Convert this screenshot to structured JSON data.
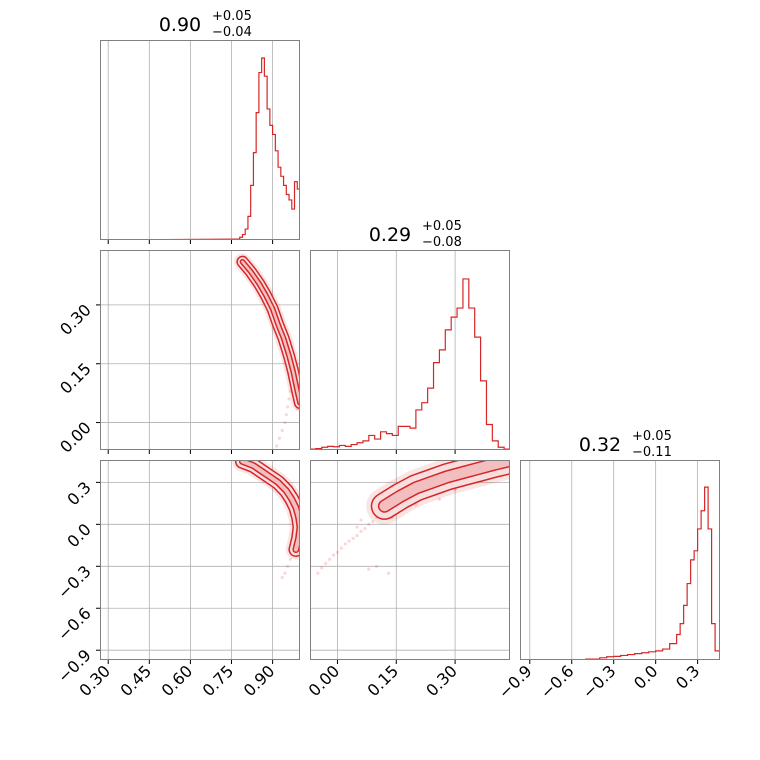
{
  "chart_data": {
    "type": "corner",
    "color": "#d62728",
    "grid": true,
    "parameters": [
      {
        "range": [
          0.27,
          1.0
        ],
        "ticks": [
          0.3,
          0.45,
          0.6,
          0.75,
          0.9
        ],
        "tick_labels": [
          "0.30",
          "0.45",
          "0.60",
          "0.75",
          "0.90"
        ],
        "title": {
          "value": "0.90",
          "plus": "+0.05",
          "minus": "−0.04"
        },
        "histogram": {
          "bins": [
            0.77,
            0.78,
            0.79,
            0.8,
            0.81,
            0.82,
            0.83,
            0.84,
            0.85,
            0.86,
            0.87,
            0.88,
            0.89,
            0.9,
            0.91,
            0.92,
            0.93,
            0.94,
            0.95,
            0.96,
            0.97,
            0.98,
            0.99,
            1.0
          ],
          "counts": [
            0.005,
            0.015,
            0.03,
            0.06,
            0.13,
            0.3,
            0.48,
            0.7,
            0.92,
            1.0,
            0.9,
            0.72,
            0.63,
            0.58,
            0.49,
            0.4,
            0.35,
            0.3,
            0.25,
            0.22,
            0.17,
            0.32,
            0.28
          ]
        }
      },
      {
        "range": [
          -0.07,
          0.44
        ],
        "ticks": [
          0.0,
          0.15,
          0.3
        ],
        "tick_labels": [
          "0.00",
          "0.15",
          "0.30"
        ],
        "title": {
          "value": "0.29",
          "plus": "+0.05",
          "minus": "−0.08"
        },
        "histogram": {
          "bins": [
            -0.07,
            -0.055,
            -0.04,
            -0.025,
            -0.01,
            0.005,
            0.02,
            0.035,
            0.05,
            0.065,
            0.08,
            0.095,
            0.11,
            0.125,
            0.14,
            0.155,
            0.17,
            0.185,
            0.2,
            0.215,
            0.23,
            0.245,
            0.26,
            0.275,
            0.29,
            0.305,
            0.32,
            0.335,
            0.35,
            0.365,
            0.38,
            0.395,
            0.41,
            0.425,
            0.44
          ],
          "counts": [
            0.005,
            0.008,
            0.015,
            0.02,
            0.018,
            0.025,
            0.02,
            0.03,
            0.04,
            0.05,
            0.08,
            0.06,
            0.1,
            0.09,
            0.08,
            0.13,
            0.13,
            0.12,
            0.22,
            0.26,
            0.34,
            0.48,
            0.55,
            0.66,
            0.73,
            0.78,
            0.94,
            0.78,
            0.62,
            0.38,
            0.14,
            0.05,
            0.015,
            0.005
          ]
        }
      },
      {
        "range": [
          -0.97,
          0.46
        ],
        "ticks": [
          -0.9,
          -0.6,
          -0.3,
          0.0,
          0.3
        ],
        "tick_labels": [
          "−0.9",
          "−0.6",
          "−0.3",
          "0.0",
          "0.3"
        ],
        "title": {
          "value": "0.32",
          "plus": "+0.05",
          "minus": "−0.11"
        },
        "histogram": {
          "bins": [
            -0.97,
            -0.9,
            -0.8,
            -0.7,
            -0.6,
            -0.5,
            -0.4,
            -0.35,
            -0.3,
            -0.25,
            -0.2,
            -0.15,
            -0.1,
            -0.05,
            0.0,
            0.05,
            0.1,
            0.15,
            0.175,
            0.2,
            0.225,
            0.25,
            0.275,
            0.3,
            0.325,
            0.35,
            0.375,
            0.4,
            0.425,
            0.46
          ],
          "counts": [
            0.0,
            0.0,
            0.0,
            0.0,
            0.0,
            0.005,
            0.012,
            0.018,
            0.02,
            0.025,
            0.03,
            0.035,
            0.04,
            0.045,
            0.05,
            0.06,
            0.09,
            0.14,
            0.2,
            0.3,
            0.42,
            0.55,
            0.6,
            0.72,
            0.82,
            0.95,
            0.72,
            0.2,
            0.05
          ]
        }
      }
    ],
    "pairs": [
      {
        "x_param": 0,
        "y_param": 1,
        "curve": [
          [
            0.79,
            0.41
          ],
          [
            0.82,
            0.385
          ],
          [
            0.85,
            0.355
          ],
          [
            0.875,
            0.325
          ],
          [
            0.9,
            0.29
          ],
          [
            0.92,
            0.25
          ],
          [
            0.94,
            0.215
          ],
          [
            0.96,
            0.17
          ],
          [
            0.975,
            0.13
          ],
          [
            0.99,
            0.08
          ],
          [
            1.0,
            0.05
          ]
        ],
        "spread": 0.015,
        "points": [
          [
            0.795,
            0.418
          ],
          [
            0.8,
            0.405
          ],
          [
            0.81,
            0.4
          ],
          [
            0.815,
            0.395
          ],
          [
            0.83,
            0.38
          ],
          [
            0.845,
            0.36
          ],
          [
            0.86,
            0.34
          ],
          [
            0.87,
            0.325
          ],
          [
            0.885,
            0.31
          ],
          [
            0.895,
            0.295
          ],
          [
            0.905,
            0.28
          ],
          [
            0.915,
            0.26
          ],
          [
            0.925,
            0.245
          ],
          [
            0.935,
            0.225
          ],
          [
            0.945,
            0.205
          ],
          [
            0.955,
            0.19
          ],
          [
            0.965,
            0.17
          ],
          [
            0.975,
            0.14
          ],
          [
            0.985,
            0.12
          ],
          [
            0.995,
            0.09
          ],
          [
            0.96,
            0.06
          ],
          [
            0.955,
            0.04
          ],
          [
            0.95,
            0.02
          ],
          [
            0.945,
            0.0
          ],
          [
            0.935,
            -0.02
          ],
          [
            0.925,
            -0.04
          ],
          [
            0.915,
            -0.06
          ],
          [
            0.99,
            0.035
          ],
          [
            0.975,
            0.1
          ],
          [
            0.965,
            0.08
          ]
        ]
      },
      {
        "x_param": 0,
        "y_param": 2,
        "curve": [
          [
            0.79,
            0.45
          ],
          [
            0.83,
            0.42
          ],
          [
            0.86,
            0.38
          ],
          [
            0.89,
            0.34
          ],
          [
            0.92,
            0.3
          ],
          [
            0.95,
            0.24
          ],
          [
            0.97,
            0.18
          ],
          [
            0.985,
            0.12
          ],
          [
            0.995,
            0.05
          ],
          [
            1.0,
            -0.02
          ],
          [
            0.995,
            -0.1
          ],
          [
            0.985,
            -0.18
          ]
        ],
        "spread": 0.02,
        "points": [
          [
            0.8,
            0.46
          ],
          [
            0.81,
            0.44
          ],
          [
            0.83,
            0.43
          ],
          [
            0.85,
            0.41
          ],
          [
            0.87,
            0.39
          ],
          [
            0.88,
            0.37
          ],
          [
            0.9,
            0.34
          ],
          [
            0.92,
            0.31
          ],
          [
            0.94,
            0.27
          ],
          [
            0.955,
            0.23
          ],
          [
            0.97,
            0.19
          ],
          [
            0.98,
            0.15
          ],
          [
            0.99,
            0.1
          ],
          [
            0.995,
            0.06
          ],
          [
            1.0,
            0.0
          ],
          [
            0.997,
            -0.05
          ],
          [
            0.993,
            -0.1
          ],
          [
            0.985,
            -0.15
          ],
          [
            0.975,
            -0.2
          ],
          [
            0.965,
            -0.25
          ],
          [
            0.955,
            -0.3
          ],
          [
            0.945,
            -0.35
          ],
          [
            0.935,
            -0.38
          ],
          [
            0.99,
            -0.06
          ],
          [
            0.98,
            -0.12
          ]
        ]
      },
      {
        "x_param": 1,
        "y_param": 2,
        "curve": [
          [
            0.12,
            0.13
          ],
          [
            0.16,
            0.2
          ],
          [
            0.2,
            0.26
          ],
          [
            0.24,
            0.3
          ],
          [
            0.28,
            0.34
          ],
          [
            0.32,
            0.37
          ],
          [
            0.36,
            0.4
          ],
          [
            0.4,
            0.43
          ],
          [
            0.43,
            0.45
          ]
        ],
        "spread": 0.03,
        "points": [
          [
            -0.05,
            -0.35
          ],
          [
            -0.04,
            -0.31
          ],
          [
            -0.03,
            -0.28
          ],
          [
            -0.02,
            -0.25
          ],
          [
            -0.01,
            -0.22
          ],
          [
            0.0,
            -0.2
          ],
          [
            0.01,
            -0.17
          ],
          [
            0.02,
            -0.14
          ],
          [
            0.03,
            -0.12
          ],
          [
            0.04,
            -0.1
          ],
          [
            0.05,
            -0.08
          ],
          [
            0.06,
            -0.05
          ],
          [
            0.07,
            -0.03
          ],
          [
            0.08,
            0.0
          ],
          [
            0.09,
            0.02
          ],
          [
            0.1,
            0.05
          ],
          [
            0.11,
            0.08
          ],
          [
            0.12,
            0.1
          ],
          [
            0.05,
            -0.02
          ],
          [
            0.06,
            0.03
          ],
          [
            0.13,
            -0.35
          ],
          [
            0.1,
            -0.3
          ],
          [
            0.08,
            -0.32
          ],
          [
            0.14,
            0.05
          ],
          [
            0.16,
            0.12
          ],
          [
            0.22,
            0.22
          ],
          [
            0.26,
            0.18
          ],
          [
            0.3,
            0.25
          ],
          [
            0.32,
            0.28
          ],
          [
            0.24,
            0.26
          ],
          [
            0.18,
            0.15
          ],
          [
            0.2,
            0.14
          ],
          [
            0.28,
            0.3
          ],
          [
            0.35,
            0.33
          ],
          [
            0.38,
            0.4
          ]
        ]
      }
    ]
  }
}
